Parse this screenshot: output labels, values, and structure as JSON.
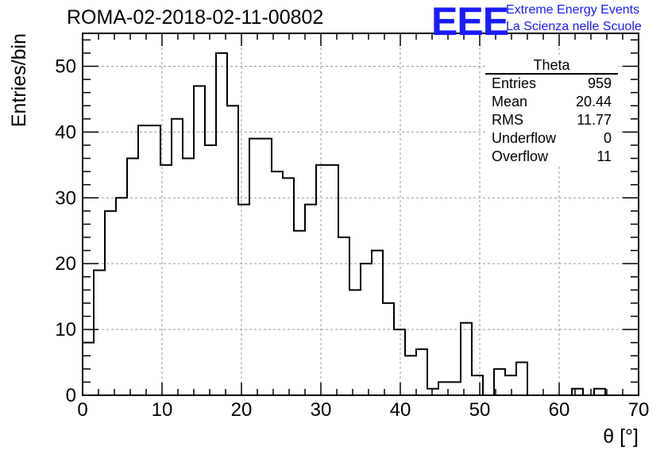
{
  "header": {
    "title": "ROMA-02-2018-02-11-00802",
    "logo_text": "EEE",
    "logo_line1": "Extreme Energy Events",
    "logo_line2": "La Scienza nelle Scuole"
  },
  "stats_box": {
    "title": "Theta",
    "rows": [
      {
        "label": "Entries",
        "value": "959"
      },
      {
        "label": "Mean",
        "value": "20.44"
      },
      {
        "label": "RMS",
        "value": "11.77"
      },
      {
        "label": "Underflow",
        "value": "0"
      },
      {
        "label": "Overflow",
        "value": "11"
      }
    ]
  },
  "chart_data": {
    "type": "bar",
    "histogram": true,
    "bin_width": 1.4,
    "bin_edges_start": 0,
    "values": [
      8,
      19,
      28,
      30,
      36,
      41,
      41,
      35,
      42,
      36,
      47,
      38,
      52,
      44,
      29,
      39,
      39,
      34,
      33,
      25,
      29,
      35,
      35,
      24,
      16,
      20,
      22,
      14,
      10,
      6,
      7,
      1,
      2,
      2,
      11,
      3,
      0,
      4,
      3,
      5,
      0,
      0,
      0,
      0,
      1,
      0,
      1,
      0,
      0,
      0
    ],
    "xlabel": "θ [°]",
    "ylabel": "Entries/bin",
    "xlim": [
      0,
      70
    ],
    "ylim": [
      0,
      55
    ],
    "x_ticks": [
      0,
      10,
      20,
      30,
      40,
      50,
      60,
      70
    ],
    "y_ticks": [
      0,
      10,
      20,
      30,
      40,
      50
    ],
    "grid": true,
    "line_color": "#000000"
  }
}
